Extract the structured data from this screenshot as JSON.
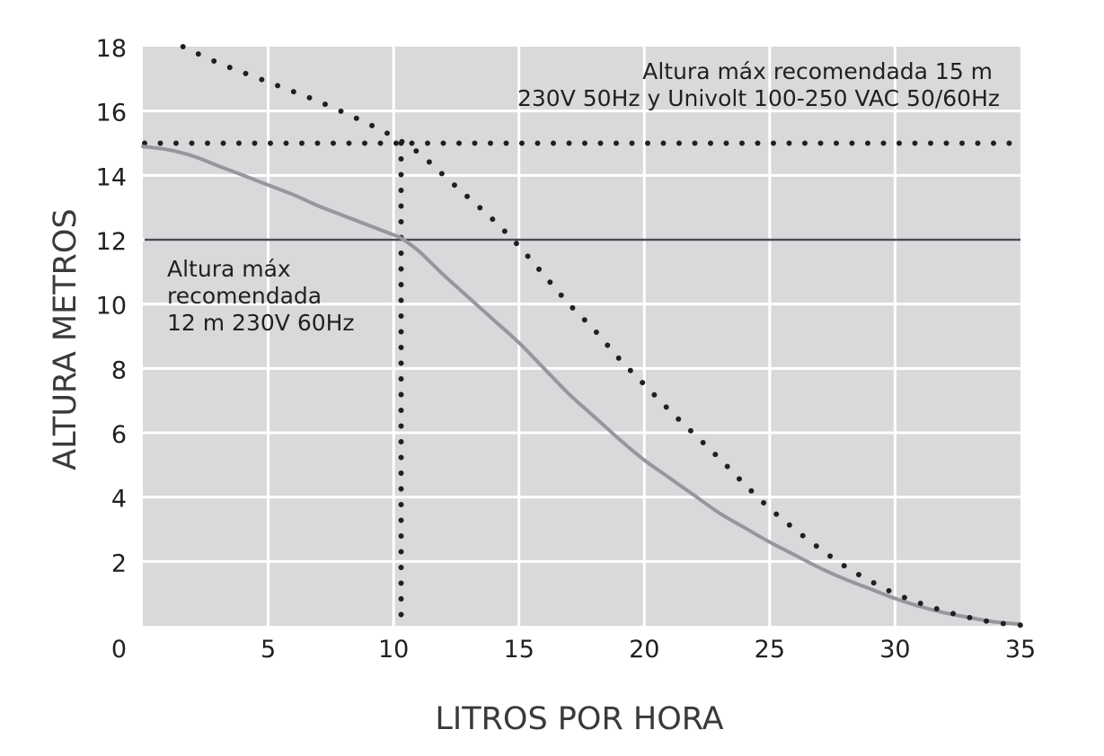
{
  "chart_data": {
    "type": "line",
    "xlabel": "LITROS POR HORA",
    "ylabel": "ALTURA METROS",
    "xlim": [
      0,
      35
    ],
    "ylim": [
      0,
      18
    ],
    "x_ticks": [
      0,
      5,
      10,
      15,
      20,
      25,
      30,
      35
    ],
    "y_ticks": [
      2,
      4,
      6,
      8,
      10,
      12,
      14,
      16,
      18
    ],
    "y_tick_labels": [
      "2",
      "4",
      "6",
      "8",
      "10",
      "12",
      "14",
      "16",
      "18"
    ],
    "x_tick_labels": [
      "0",
      "5",
      "10",
      "15",
      "20",
      "25",
      "30",
      "35"
    ],
    "grid": true,
    "series": [
      {
        "style": "solid",
        "color": "#96969b",
        "x": [
          0,
          1,
          2,
          3,
          4,
          5,
          6,
          7,
          8,
          9,
          10,
          10.3,
          11,
          12,
          13,
          14,
          15,
          16,
          17,
          18,
          19,
          20,
          21,
          22,
          23,
          24,
          25,
          26,
          27,
          28,
          29,
          30,
          31,
          32,
          33,
          34,
          35
        ],
        "y": [
          14.9,
          14.8,
          14.6,
          14.3,
          14.0,
          13.7,
          13.4,
          13.05,
          12.75,
          12.45,
          12.15,
          12.05,
          11.65,
          10.9,
          10.2,
          9.5,
          8.8,
          8.0,
          7.2,
          6.5,
          5.8,
          5.15,
          4.6,
          4.05,
          3.5,
          3.05,
          2.6,
          2.2,
          1.8,
          1.45,
          1.15,
          0.85,
          0.6,
          0.4,
          0.25,
          0.12,
          0.05
        ]
      },
      {
        "style": "dotted",
        "color": "#231f20",
        "x": [
          1.6,
          3,
          5,
          7,
          9,
          10,
          11,
          12,
          13,
          14,
          15,
          16,
          17,
          18,
          19,
          20,
          21,
          22,
          23,
          24,
          25,
          26,
          27,
          28,
          29,
          30,
          31,
          32,
          33,
          34,
          35
        ],
        "y": [
          18.0,
          17.5,
          16.9,
          16.3,
          15.6,
          15.2,
          14.7,
          14.0,
          13.3,
          12.6,
          11.8,
          10.9,
          10.0,
          9.2,
          8.3,
          7.5,
          6.7,
          5.95,
          5.2,
          4.4,
          3.65,
          3.0,
          2.4,
          1.85,
          1.4,
          1.0,
          0.7,
          0.45,
          0.25,
          0.1,
          0.02
        ]
      }
    ],
    "reference_lines": [
      {
        "orientation": "horizontal",
        "value": 15,
        "style": "dotted",
        "color": "#231f20"
      },
      {
        "orientation": "horizontal",
        "value": 12,
        "style": "solid",
        "color": "#4b4b55"
      },
      {
        "orientation": "vertical",
        "value": 10.3,
        "style": "dotted",
        "color": "#231f20"
      }
    ],
    "annotations": [
      {
        "lines": [
          "Altura máx recomendada 15 m",
          "230V 50Hz y Univolt 100-250 VAC 50/60Hz"
        ],
        "anchor": "top-right"
      },
      {
        "lines": [
          "Altura máx",
          "recomendada",
          "12 m 230V 60Hz"
        ],
        "anchor": "left"
      }
    ],
    "colors": {
      "plot_background": "#d9d9dc",
      "grid": "#ffffff",
      "text": "#231f20"
    }
  }
}
